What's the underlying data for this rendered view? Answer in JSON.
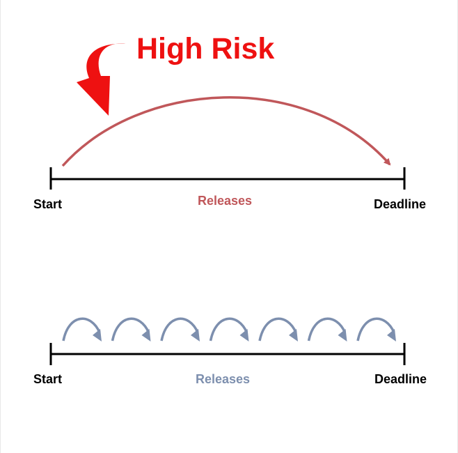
{
  "colors": {
    "risk": "#ee1111",
    "big_arc": "#c0575a",
    "small_arcs": "#7d8fae",
    "timeline": "#000000",
    "label": "#000000",
    "releases_top": "#c0575a",
    "releases_bottom": "#7d8fae"
  },
  "top": {
    "title": "High Risk",
    "start_label": "Start",
    "middle_label": "Releases",
    "end_label": "Deadline",
    "release_count": 1,
    "callout_icon": "curved-arrow-down"
  },
  "bottom": {
    "start_label": "Start",
    "middle_label": "Releases",
    "end_label": "Deadline",
    "release_count": 7
  }
}
